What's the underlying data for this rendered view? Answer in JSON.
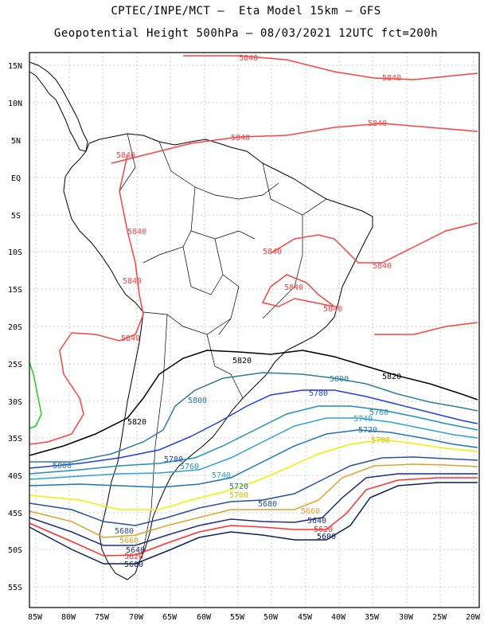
{
  "title_line1": "CPTEC/INPE/MCT –  Eta Model 15km – GFS",
  "title_line2": "Geopotential Height 500hPa – 08/03/2021 12UTC fct=200h",
  "lat_labels": [
    "15N",
    "10N",
    "5N",
    "EQ",
    "5S",
    "10S",
    "15S",
    "20S",
    "25S",
    "30S",
    "35S",
    "40S",
    "45S",
    "50S",
    "55S"
  ],
  "lon_labels": [
    "85W",
    "80W",
    "75W",
    "70W",
    "65W",
    "60W",
    "55W",
    "50W",
    "45W",
    "40W",
    "35W",
    "30W",
    "25W",
    "20W"
  ],
  "contours": [
    {
      "value": "5840",
      "color": "#ff4040"
    },
    {
      "value": "5820",
      "color": "#000000"
    },
    {
      "value": "5800",
      "color": "#2e7ba0"
    },
    {
      "value": "5780",
      "color": "#1f3fe0"
    },
    {
      "value": "5760",
      "color": "#1f8fb8"
    },
    {
      "value": "5740",
      "color": "#30a0d0"
    },
    {
      "value": "5720",
      "color": "#1d75b8"
    },
    {
      "value": "5700",
      "color": "#f0f000"
    },
    {
      "value": "5680",
      "color": "#2a4fa0"
    },
    {
      "value": "5660",
      "color": "#e0a030"
    },
    {
      "value": "5640",
      "color": "#1e2f80"
    },
    {
      "value": "5620",
      "color": "#ff3030"
    },
    {
      "value": "5600",
      "color": "#0a2060"
    }
  ],
  "extra_contour_color": "#20d020"
}
